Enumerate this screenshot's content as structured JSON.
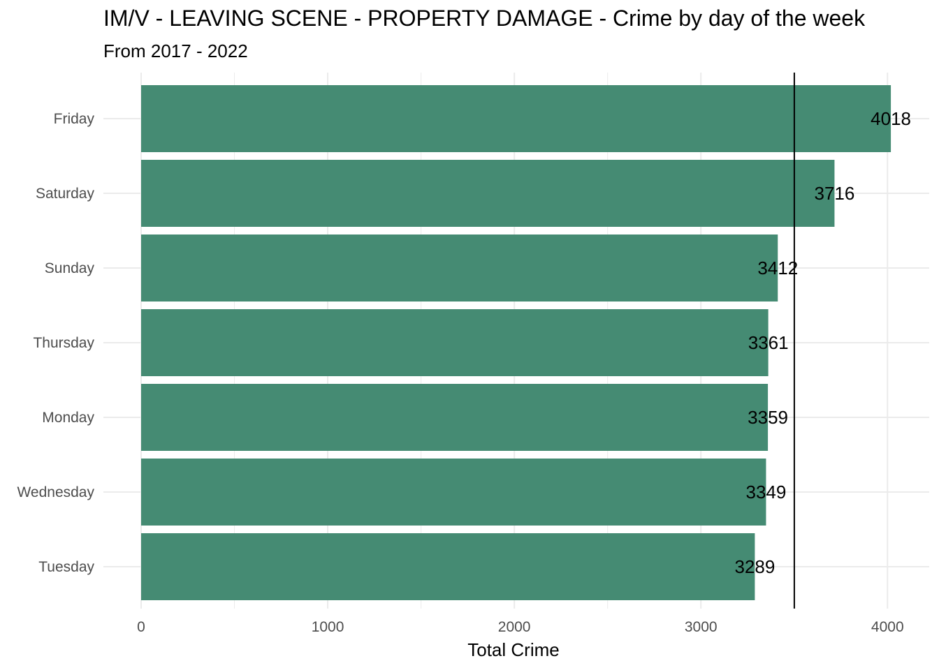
{
  "chart_data": {
    "type": "bar",
    "orientation": "horizontal",
    "title": "IM/V - LEAVING SCENE - PROPERTY DAMAGE - Crime by day of the week",
    "subtitle": "From 2017 - 2022",
    "xlabel": "Total Crime",
    "ylabel": "",
    "categories": [
      "Friday",
      "Saturday",
      "Sunday",
      "Thursday",
      "Monday",
      "Wednesday",
      "Tuesday"
    ],
    "values": [
      4018,
      3716,
      3412,
      3361,
      3359,
      3349,
      3289
    ],
    "data_labels": [
      "4018",
      "3716",
      "3412",
      "3361",
      "3359",
      "3349",
      "3289"
    ],
    "xlim": [
      0,
      4018
    ],
    "x_ticks": [
      0,
      1000,
      2000,
      3000,
      4000
    ],
    "x_tick_labels": [
      "0",
      "1000",
      "2000",
      "3000",
      "4000"
    ],
    "reference_line": 3500.57,
    "grid": true,
    "legend": "none",
    "bar_color": "#458B73",
    "grid_color": "#ebebeb",
    "reference_line_color": "#000000"
  }
}
